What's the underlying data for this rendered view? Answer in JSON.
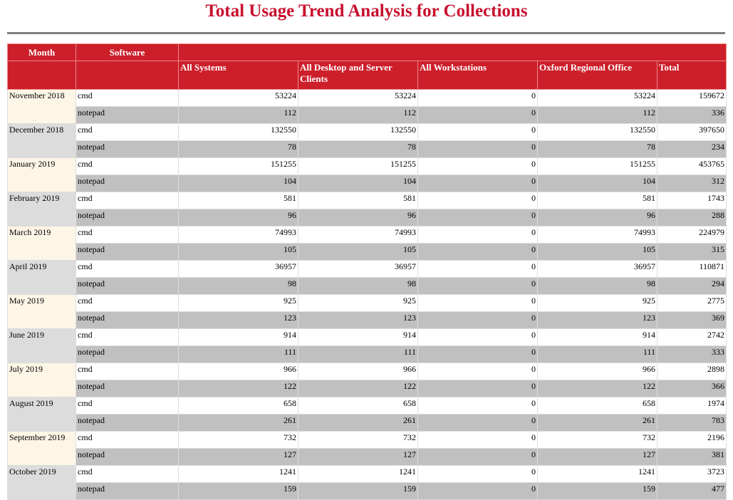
{
  "title": "Total Usage Trend Analysis for Collections",
  "header": {
    "month": "Month",
    "software": "Software",
    "columns": [
      "All Systems",
      "All Desktop and Server Clients",
      "All Workstations",
      "Oxford Regional Office",
      "Total"
    ]
  },
  "months": [
    {
      "month": "November 2018",
      "rows": [
        {
          "software": "cmd",
          "values": [
            53224,
            53224,
            0,
            53224,
            159672
          ]
        },
        {
          "software": "notepad",
          "values": [
            112,
            112,
            0,
            112,
            336
          ]
        }
      ]
    },
    {
      "month": "December 2018",
      "rows": [
        {
          "software": "cmd",
          "values": [
            132550,
            132550,
            0,
            132550,
            397650
          ]
        },
        {
          "software": "notepad",
          "values": [
            78,
            78,
            0,
            78,
            234
          ]
        }
      ]
    },
    {
      "month": "January 2019",
      "rows": [
        {
          "software": "cmd",
          "values": [
            151255,
            151255,
            0,
            151255,
            453765
          ]
        },
        {
          "software": "notepad",
          "values": [
            104,
            104,
            0,
            104,
            312
          ]
        }
      ]
    },
    {
      "month": "February 2019",
      "rows": [
        {
          "software": "cmd",
          "values": [
            581,
            581,
            0,
            581,
            1743
          ]
        },
        {
          "software": "notepad",
          "values": [
            96,
            96,
            0,
            96,
            288
          ]
        }
      ]
    },
    {
      "month": "March 2019",
      "rows": [
        {
          "software": "cmd",
          "values": [
            74993,
            74993,
            0,
            74993,
            224979
          ]
        },
        {
          "software": "notepad",
          "values": [
            105,
            105,
            0,
            105,
            315
          ]
        }
      ]
    },
    {
      "month": "April 2019",
      "rows": [
        {
          "software": "cmd",
          "values": [
            36957,
            36957,
            0,
            36957,
            110871
          ]
        },
        {
          "software": "notepad",
          "values": [
            98,
            98,
            0,
            98,
            294
          ]
        }
      ]
    },
    {
      "month": "May 2019",
      "rows": [
        {
          "software": "cmd",
          "values": [
            925,
            925,
            0,
            925,
            2775
          ]
        },
        {
          "software": "notepad",
          "values": [
            123,
            123,
            0,
            123,
            369
          ]
        }
      ]
    },
    {
      "month": "June 2019",
      "rows": [
        {
          "software": "cmd",
          "values": [
            914,
            914,
            0,
            914,
            2742
          ]
        },
        {
          "software": "notepad",
          "values": [
            111,
            111,
            0,
            111,
            333
          ]
        }
      ]
    },
    {
      "month": "July 2019",
      "rows": [
        {
          "software": "cmd",
          "values": [
            966,
            966,
            0,
            966,
            2898
          ]
        },
        {
          "software": "notepad",
          "values": [
            122,
            122,
            0,
            122,
            366
          ]
        }
      ]
    },
    {
      "month": "August 2019",
      "rows": [
        {
          "software": "cmd",
          "values": [
            658,
            658,
            0,
            658,
            1974
          ]
        },
        {
          "software": "notepad",
          "values": [
            261,
            261,
            0,
            261,
            783
          ]
        }
      ]
    },
    {
      "month": "September 2019",
      "rows": [
        {
          "software": "cmd",
          "values": [
            732,
            732,
            0,
            732,
            2196
          ]
        },
        {
          "software": "notepad",
          "values": [
            127,
            127,
            0,
            127,
            381
          ]
        }
      ]
    },
    {
      "month": "October 2019",
      "rows": [
        {
          "software": "cmd",
          "values": [
            1241,
            1241,
            0,
            1241,
            3723
          ]
        },
        {
          "software": "notepad",
          "values": [
            159,
            159,
            0,
            159,
            477
          ]
        }
      ]
    }
  ]
}
